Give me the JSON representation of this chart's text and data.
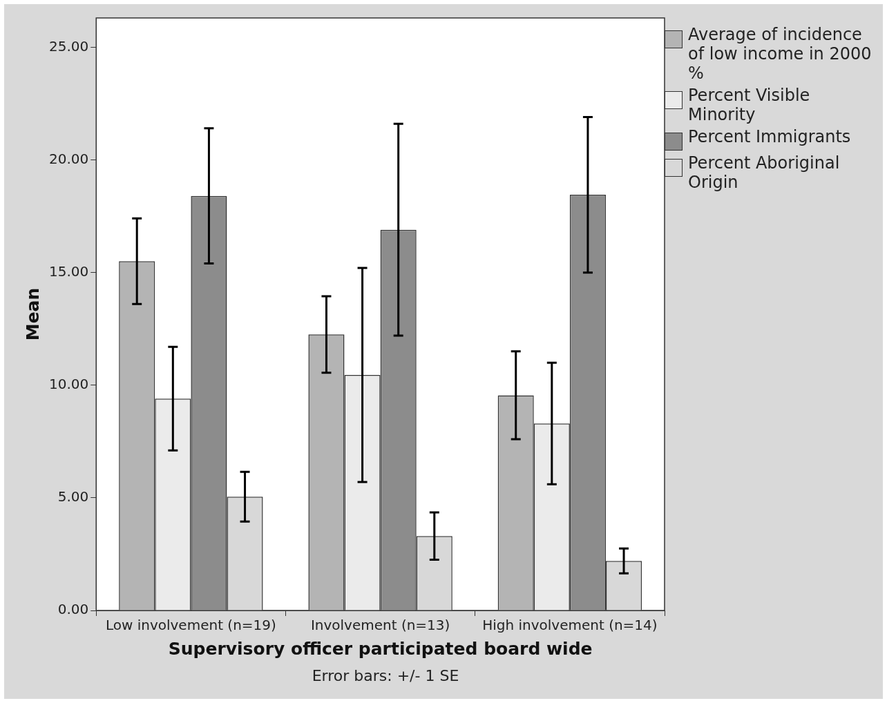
{
  "chart_data": {
    "type": "bar",
    "xlabel": "Supervisory officer participated board wide",
    "ylabel": "Mean",
    "categories": [
      "Low involvement (n=19)",
      "Involvement (n=13)",
      "High involvement (n=14)"
    ],
    "series": [
      {
        "name": "Average of incidence of low income in 2000 %",
        "color": "#b4b4b4",
        "values": [
          15.5,
          12.25,
          9.55
        ],
        "errors": [
          1.9,
          1.7,
          1.95
        ]
      },
      {
        "name": "Percent Visible Minority",
        "color": "#ebebeb",
        "values": [
          9.4,
          10.45,
          8.3
        ],
        "errors": [
          2.3,
          4.75,
          2.7
        ]
      },
      {
        "name": "Percent Immigrants",
        "color": "#8c8c8c",
        "values": [
          18.4,
          16.9,
          18.45
        ],
        "errors": [
          3.0,
          4.7,
          3.45
        ]
      },
      {
        "name": "Percent Aboriginal Origin",
        "color": "#d8d8d8",
        "values": [
          5.05,
          3.3,
          2.2
        ],
        "errors": [
          1.1,
          1.05,
          0.55
        ]
      }
    ],
    "ylim": [
      0,
      26.3
    ],
    "yticks": [
      {
        "value": 0,
        "label": "0.00"
      },
      {
        "value": 5,
        "label": "5.00"
      },
      {
        "value": 10,
        "label": "10.00"
      },
      {
        "value": 15,
        "label": "15.00"
      },
      {
        "value": 20,
        "label": "20.00"
      },
      {
        "value": 25,
        "label": "25.00"
      }
    ],
    "grid": false,
    "legend": "right",
    "annotations": [
      "Error bars: +/- 1 SE"
    ]
  }
}
